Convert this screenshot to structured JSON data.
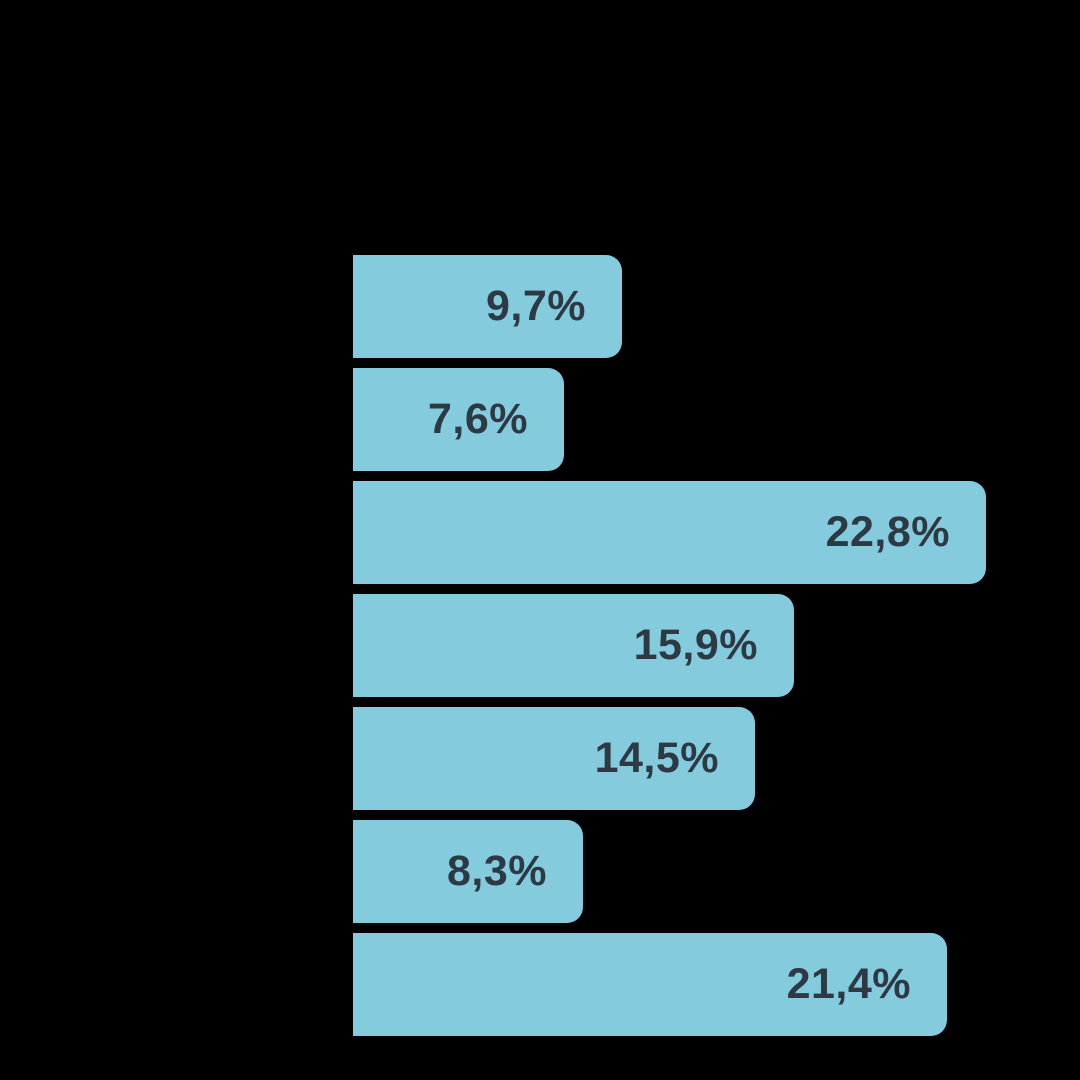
{
  "canvas": {
    "background": "#000000"
  },
  "chart_data": {
    "type": "bar",
    "orientation": "horizontal",
    "title": "",
    "xlabel": "",
    "ylabel": "",
    "values": [
      9.7,
      7.6,
      22.8,
      15.9,
      14.5,
      8.3,
      21.4
    ],
    "labels": [
      "9,7%",
      "7,6%",
      "22,8%",
      "15,9%",
      "14,5%",
      "8,3%",
      "21,4%"
    ],
    "xlim": [
      0,
      26.2
    ],
    "grid": false,
    "legend": false,
    "axis_labels_visible": false,
    "value_labels_position": "inside-end",
    "bar_color": "#84CBDD",
    "label_color": "#2D3943",
    "background_color": "#000000"
  }
}
